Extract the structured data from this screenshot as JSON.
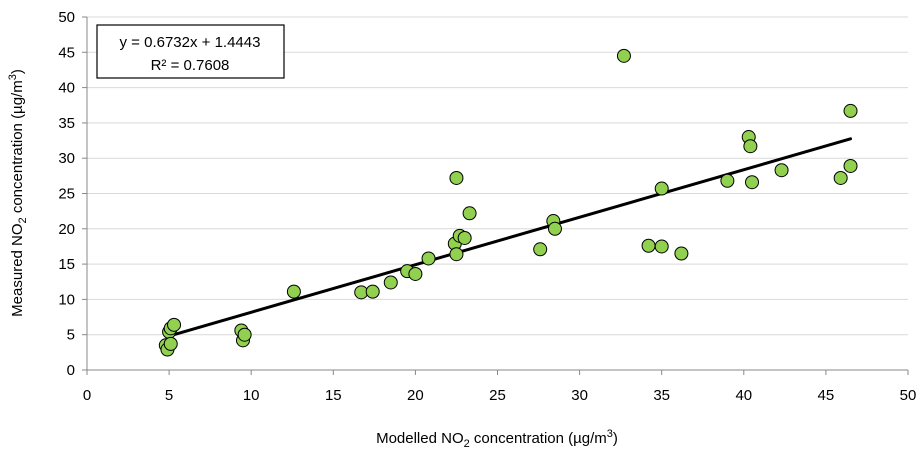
{
  "chart_data": {
    "type": "scatter",
    "xlabel": {
      "pre": "Modelled NO",
      "sub": "2",
      "post": " concentration (µg/m",
      "sup": "3",
      "end": ")"
    },
    "ylabel": {
      "pre": "Measured NO",
      "sub": "2",
      "post": " concentration (µg/m",
      "sup": "3",
      "end": ")"
    },
    "xlim": [
      0,
      50
    ],
    "ylim": [
      0,
      50
    ],
    "xticks": [
      0,
      5,
      10,
      15,
      20,
      25,
      30,
      35,
      40,
      45,
      50
    ],
    "yticks": [
      0,
      5,
      10,
      15,
      20,
      25,
      30,
      35,
      40,
      45,
      50
    ],
    "grid": "horizontal",
    "marker_color": "#92d050",
    "marker_edge": "#000000",
    "trendline": {
      "equation": "y = 0.6732x + 1.4443",
      "r_squared": "R² = 0.7608",
      "slope": 0.6732,
      "intercept": 1.4443,
      "x_range": [
        5,
        46.5
      ],
      "color": "#000000"
    },
    "points": [
      {
        "x": 4.8,
        "y": 3.5
      },
      {
        "x": 4.9,
        "y": 2.9
      },
      {
        "x": 5.0,
        "y": 5.4
      },
      {
        "x": 5.1,
        "y": 3.7
      },
      {
        "x": 5.1,
        "y": 5.9
      },
      {
        "x": 5.3,
        "y": 6.4
      },
      {
        "x": 9.4,
        "y": 5.6
      },
      {
        "x": 9.5,
        "y": 4.2
      },
      {
        "x": 9.6,
        "y": 5.0
      },
      {
        "x": 12.6,
        "y": 11.1
      },
      {
        "x": 16.7,
        "y": 11.0
      },
      {
        "x": 17.4,
        "y": 11.1
      },
      {
        "x": 18.5,
        "y": 12.4
      },
      {
        "x": 19.5,
        "y": 14.0
      },
      {
        "x": 20.0,
        "y": 13.6
      },
      {
        "x": 20.8,
        "y": 15.8
      },
      {
        "x": 22.4,
        "y": 17.9
      },
      {
        "x": 22.5,
        "y": 16.4
      },
      {
        "x": 22.5,
        "y": 27.2
      },
      {
        "x": 22.7,
        "y": 19.0
      },
      {
        "x": 23.0,
        "y": 18.7
      },
      {
        "x": 23.3,
        "y": 22.2
      },
      {
        "x": 27.6,
        "y": 17.1
      },
      {
        "x": 28.4,
        "y": 21.1
      },
      {
        "x": 28.5,
        "y": 20.0
      },
      {
        "x": 32.7,
        "y": 44.5
      },
      {
        "x": 34.2,
        "y": 17.6
      },
      {
        "x": 35.0,
        "y": 25.7
      },
      {
        "x": 35.0,
        "y": 17.5
      },
      {
        "x": 36.2,
        "y": 16.5
      },
      {
        "x": 39.0,
        "y": 26.8
      },
      {
        "x": 40.3,
        "y": 33.0
      },
      {
        "x": 40.4,
        "y": 31.7
      },
      {
        "x": 40.5,
        "y": 26.6
      },
      {
        "x": 42.3,
        "y": 28.3
      },
      {
        "x": 45.9,
        "y": 27.2
      },
      {
        "x": 46.5,
        "y": 28.9
      },
      {
        "x": 46.5,
        "y": 36.7
      }
    ]
  }
}
